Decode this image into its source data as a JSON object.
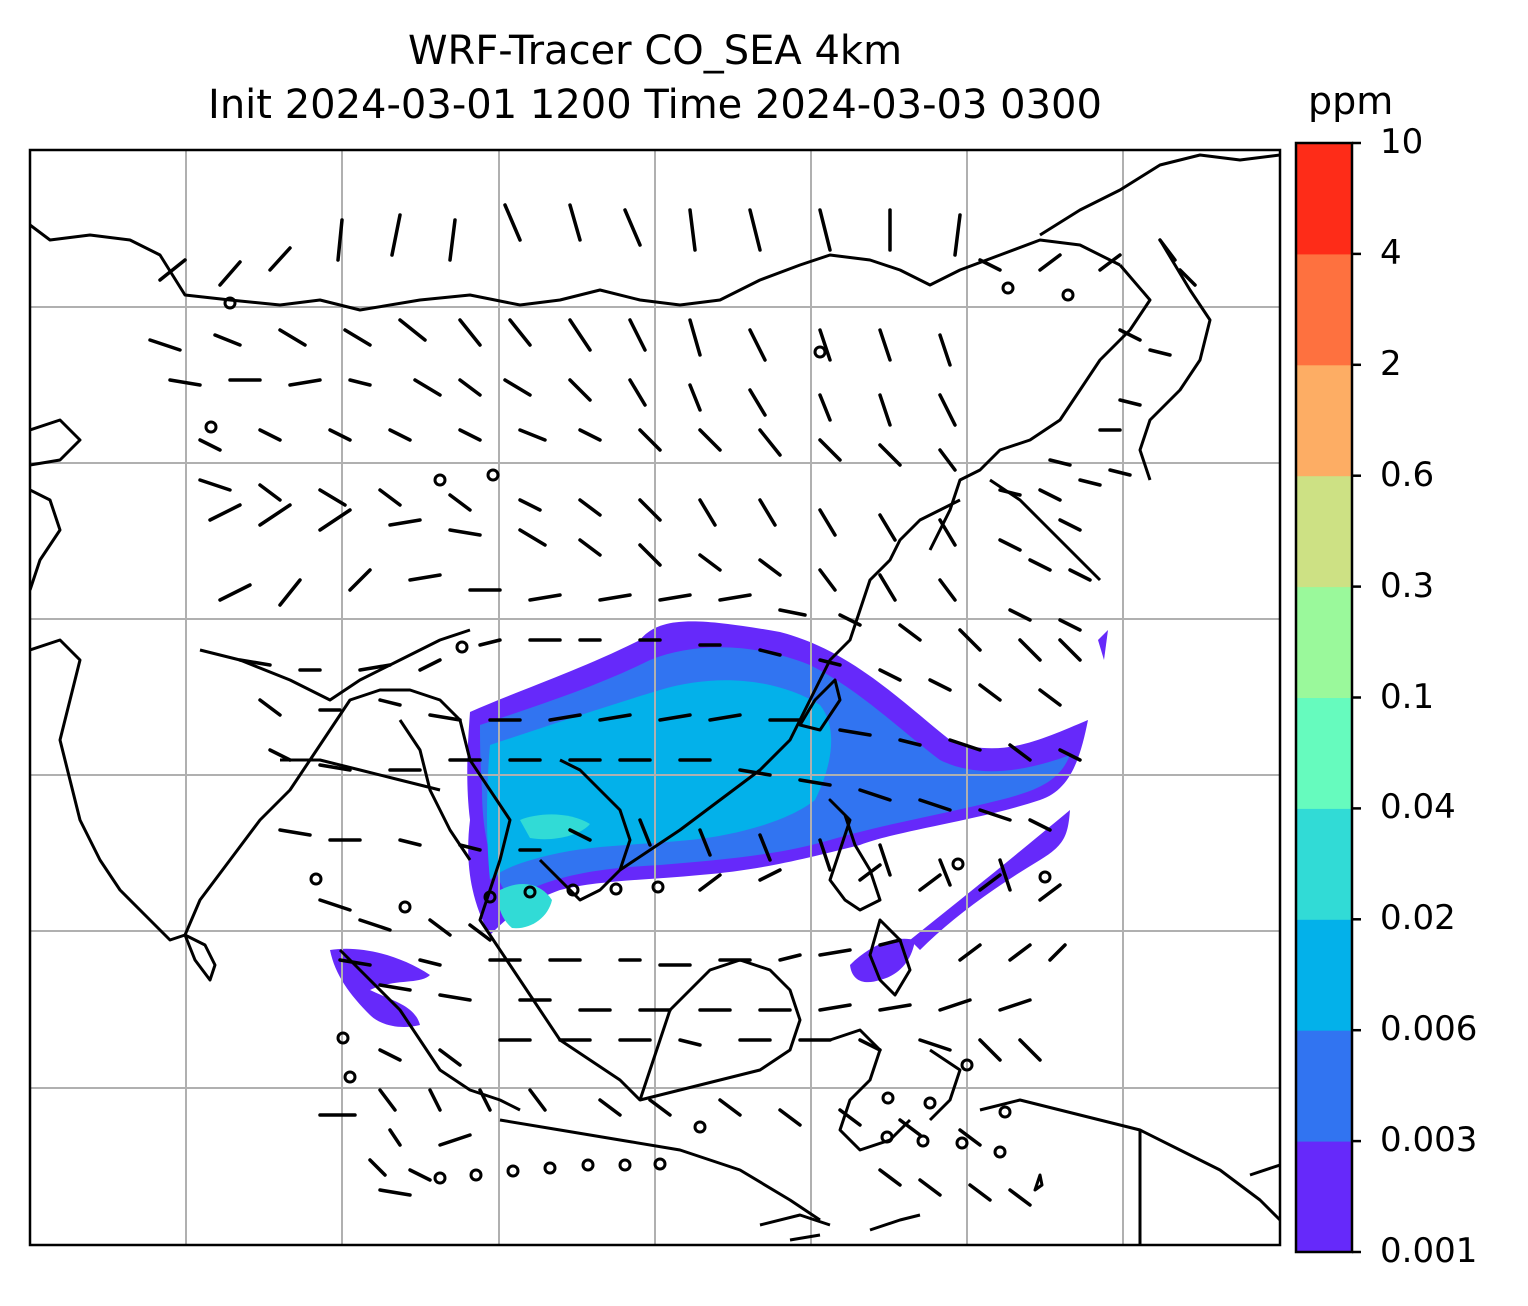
{
  "title": {
    "line1": "WRF-Tracer CO_SEA 4km",
    "line2": "Init 2024-03-01 1200 Time 2024-03-03 0300"
  },
  "colorbar": {
    "unit": "ppm",
    "levels": [
      "0.001",
      "0.003",
      "0.006",
      "0.02",
      "0.04",
      "0.1",
      "0.3",
      "0.6",
      "2",
      "4",
      "10"
    ],
    "colors": [
      "#6629fa",
      "#3174f1",
      "#03b1ea",
      "#31dbd6",
      "#66fbbe",
      "#9af99b",
      "#cde184",
      "#fdad64",
      "#fe713f",
      "#fe2c18"
    ]
  },
  "map": {
    "field": "CO tracer concentration (filled) with wind barbs",
    "grid": true,
    "coastlines": true
  }
}
